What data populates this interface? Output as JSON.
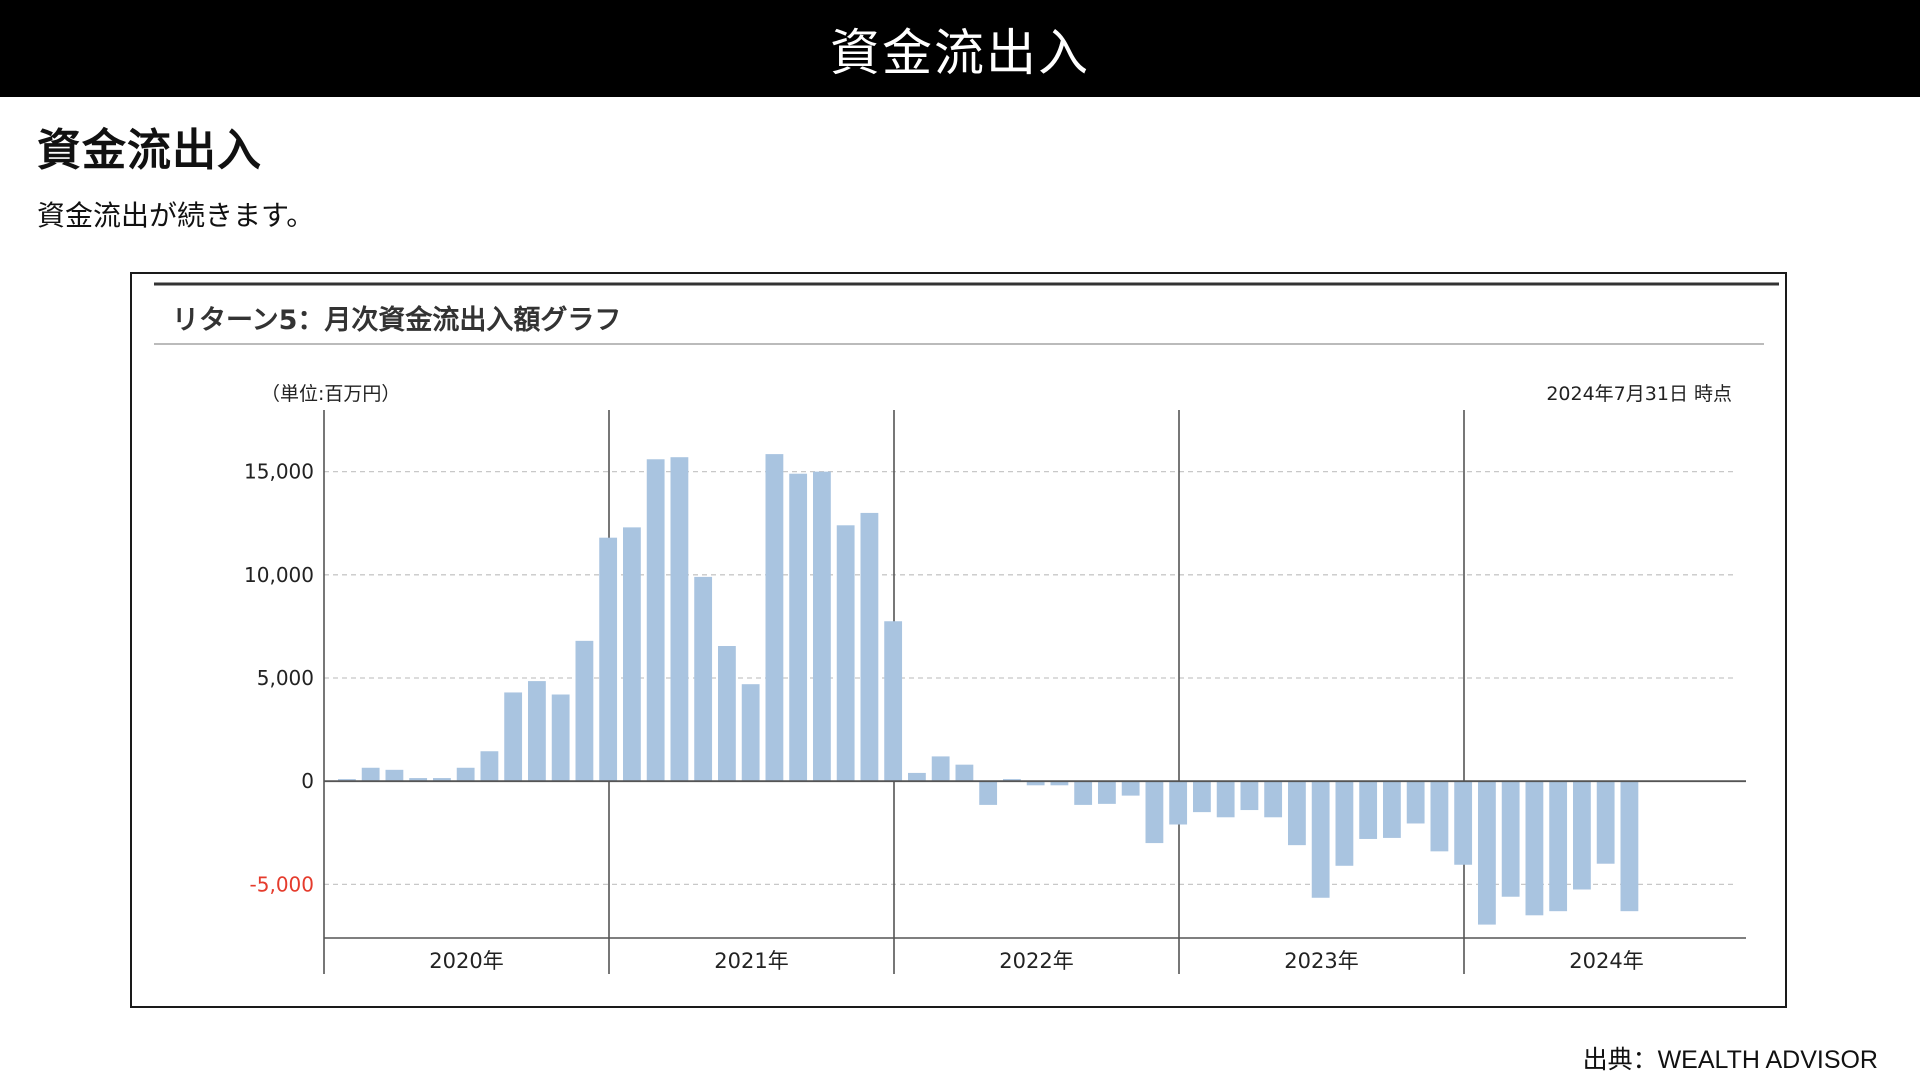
{
  "header": {
    "title": "資金流出入"
  },
  "page": {
    "heading": "資金流出入",
    "subtitle": "資金流出が続きます。"
  },
  "chart_title": "リターン5：月次資金流出入額グラフ",
  "source": "出典：WEALTH ADVISOR",
  "colors": {
    "bar": "#a9c4e0",
    "negative_tick": "#e53b2c",
    "grid": "#c8c8c8",
    "axis": "#555555",
    "zero_line": "#555555",
    "title_rule": "#333333"
  },
  "chart_data": {
    "type": "bar",
    "unit_label": "（単位:百万円）",
    "as_of_label": "2024年7月31日 時点",
    "ylim": [
      -7600,
      17600
    ],
    "yticks": [
      {
        "value": 15000,
        "label": "15,000"
      },
      {
        "value": 10000,
        "label": "10,000"
      },
      {
        "value": 5000,
        "label": "5,000"
      },
      {
        "value": 0,
        "label": "0"
      },
      {
        "value": -5000,
        "label": "-5,000"
      }
    ],
    "grid": true,
    "years": [
      "2020年",
      "2021年",
      "2022年",
      "2023年",
      "2024年"
    ],
    "months_per_year": 12,
    "series": [
      {
        "values": [
          100,
          650,
          550,
          150,
          150,
          650,
          1450,
          4300,
          4850,
          4200,
          6800,
          11800,
          12300,
          15600,
          15700,
          9900,
          6550,
          4700,
          15850,
          14900,
          15000,
          12400,
          13000,
          7750,
          400,
          1200,
          800,
          -1150,
          100,
          -200,
          -200,
          -1150,
          -1100,
          -700,
          -3000,
          -2100,
          -1500,
          -1750,
          -1400,
          -1750,
          -3100,
          -5650,
          -4100,
          -2800,
          -2750,
          -2050,
          -3400,
          -4050,
          -6950,
          -5600,
          -6500,
          -6300,
          -5250,
          -4000,
          -6300
        ]
      }
    ]
  }
}
